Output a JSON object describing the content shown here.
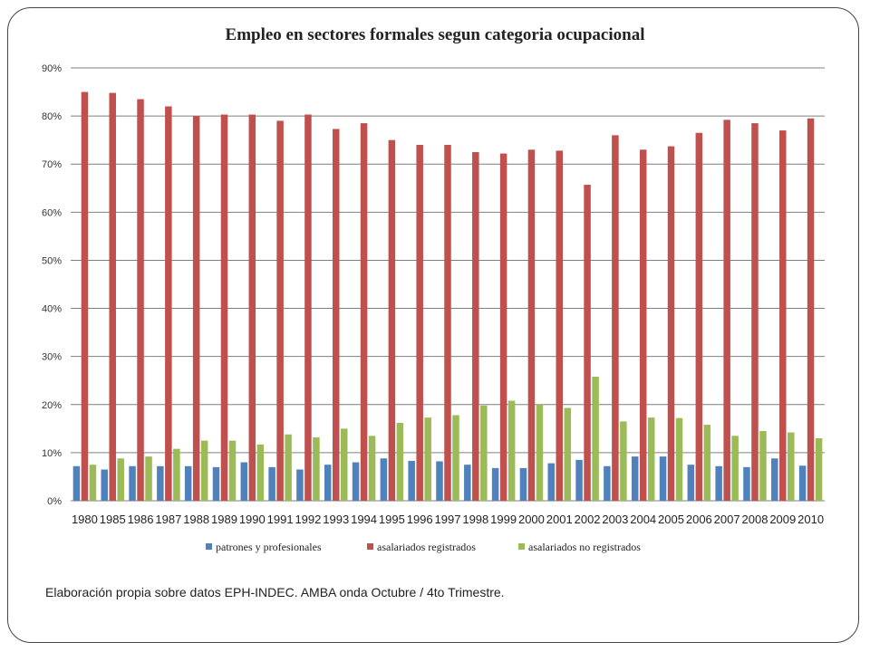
{
  "chart_data": {
    "type": "bar",
    "title": "Empleo en sectores formales segun categoria ocupacional",
    "xlabel": "",
    "ylabel": "",
    "ylim": [
      0,
      0.9
    ],
    "yticks": [
      "0%",
      "10%",
      "20%",
      "30%",
      "40%",
      "50%",
      "60%",
      "70%",
      "80%",
      "90%"
    ],
    "grid": true,
    "legend_position": "bottom",
    "categories": [
      "1980",
      "1985",
      "1986",
      "1987",
      "1988",
      "1989",
      "1990",
      "1991",
      "1992",
      "1993",
      "1994",
      "1995",
      "1996",
      "1997",
      "1998",
      "1999",
      "2000",
      "2001",
      "2002",
      "2003",
      "2004",
      "2005",
      "2006",
      "2007",
      "2008",
      "2009",
      "2010"
    ],
    "series": [
      {
        "name": "patrones y profesionales",
        "color": "#4f81bd",
        "values": [
          0.072,
          0.065,
          0.072,
          0.072,
          0.072,
          0.07,
          0.08,
          0.07,
          0.065,
          0.075,
          0.08,
          0.088,
          0.083,
          0.082,
          0.075,
          0.068,
          0.068,
          0.078,
          0.085,
          0.072,
          0.092,
          0.092,
          0.075,
          0.072,
          0.07,
          0.088,
          0.073
        ]
      },
      {
        "name": "asalariados registrados",
        "color": "#c0504d",
        "values": [
          0.85,
          0.848,
          0.835,
          0.82,
          0.8,
          0.803,
          0.803,
          0.79,
          0.803,
          0.773,
          0.785,
          0.75,
          0.74,
          0.74,
          0.725,
          0.722,
          0.73,
          0.728,
          0.657,
          0.76,
          0.73,
          0.737,
          0.765,
          0.792,
          0.785,
          0.77,
          0.795
        ]
      },
      {
        "name": "asalariados no registrados",
        "color": "#9bbb59",
        "values": [
          0.075,
          0.088,
          0.092,
          0.108,
          0.125,
          0.125,
          0.117,
          0.138,
          0.132,
          0.15,
          0.135,
          0.162,
          0.173,
          0.178,
          0.198,
          0.208,
          0.2,
          0.193,
          0.258,
          0.165,
          0.173,
          0.172,
          0.158,
          0.135,
          0.145,
          0.142,
          0.13
        ]
      }
    ]
  },
  "footer": {
    "source": "Elaboración propia sobre datos EPH-INDEC. AMBA onda Octubre / 4to Trimestre."
  }
}
